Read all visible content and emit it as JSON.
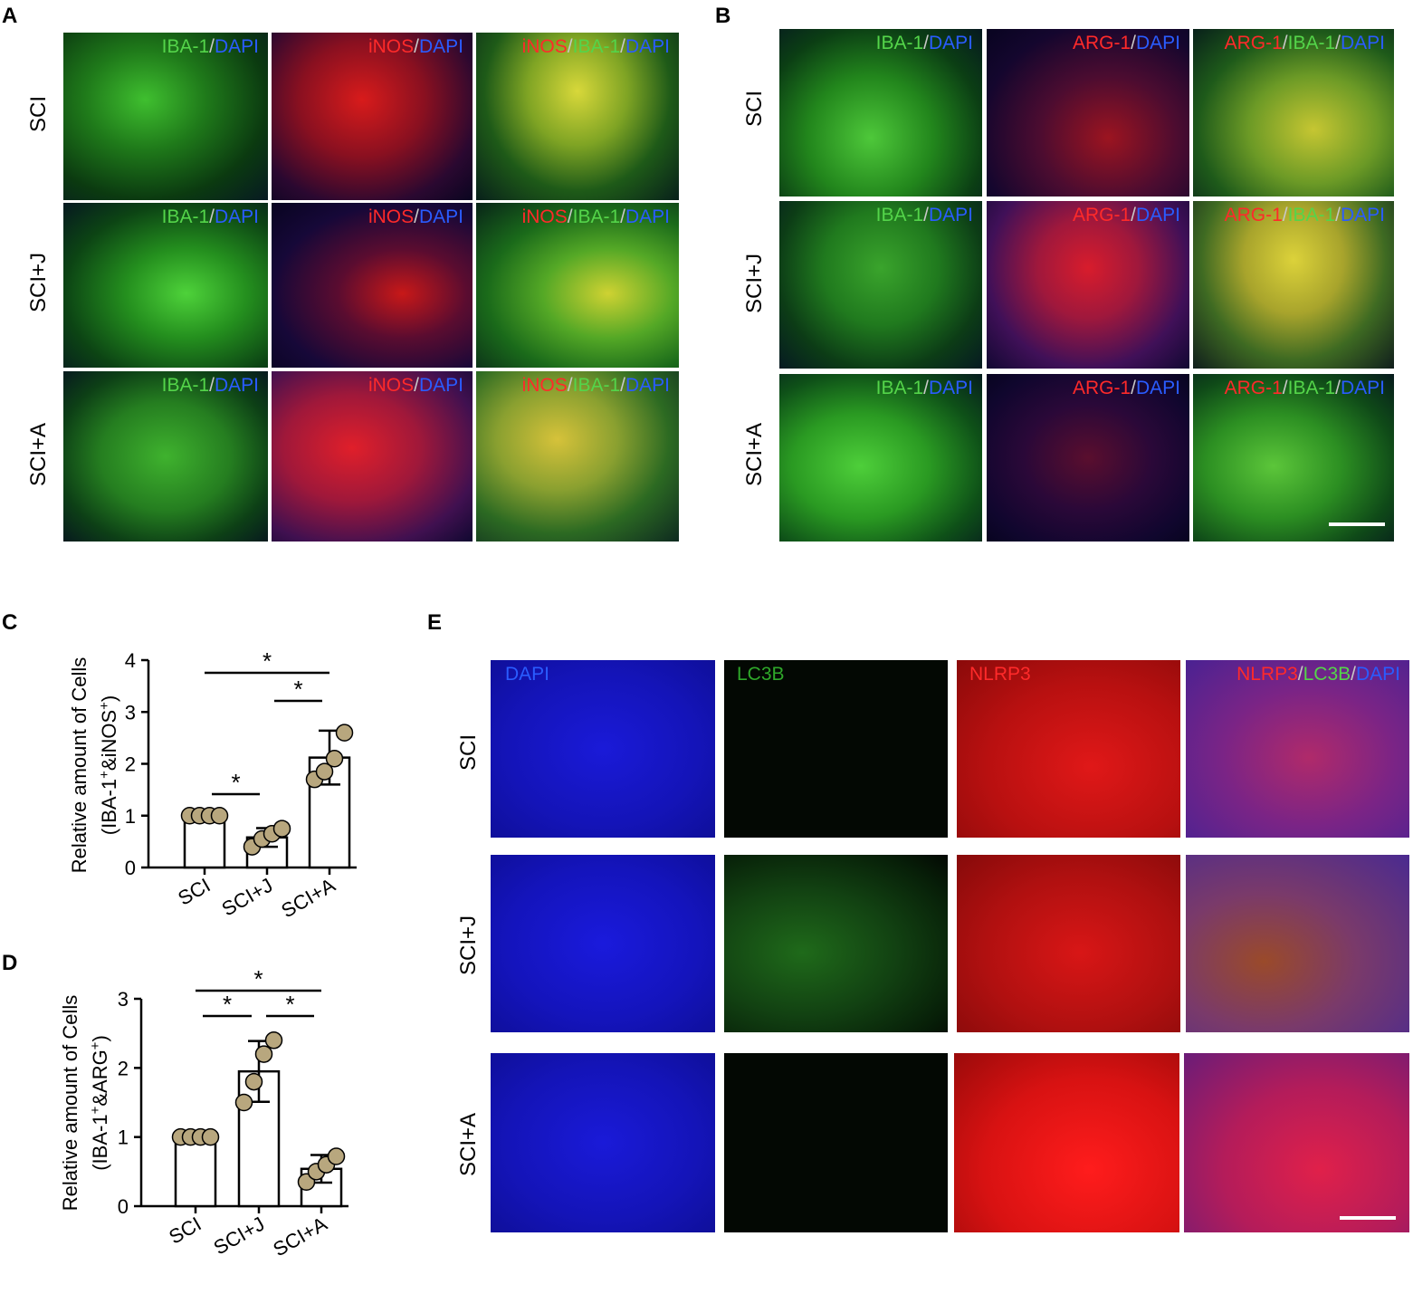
{
  "panels": {
    "A": "A",
    "B": "B",
    "C": "C",
    "D": "D",
    "E": "E"
  },
  "row_labels": [
    "SCI",
    "SCI+J",
    "SCI+A"
  ],
  "panelA": {
    "label1": [
      "IBA-1",
      "/",
      "DAPI"
    ],
    "label2": [
      "iNOS",
      "/",
      "DAPI"
    ],
    "label3": [
      "iNOS",
      "/",
      "IBA-1",
      "/",
      "DAPI"
    ]
  },
  "panelB": {
    "label1": [
      "IBA-1",
      "/",
      "DAPI"
    ],
    "label2": [
      "ARG-1",
      "/",
      "DAPI"
    ],
    "label3": [
      "ARG-1",
      "/",
      "IBA-1",
      "/",
      "DAPI"
    ]
  },
  "panelE": {
    "label1": "DAPI",
    "label2": "LC3B",
    "label3": "NLRP3",
    "label4": [
      "NLRP3",
      "/",
      "LC3B",
      "/",
      "DAPI"
    ]
  },
  "colors": {
    "red": "#ff2a2a",
    "green": "#54d54a",
    "blue": "#2a5cff",
    "point_fill": "#b8a77e"
  },
  "chart_data": [
    {
      "type": "bar",
      "panel": "C",
      "categories": [
        "SCI",
        "SCI+J",
        "SCI+A"
      ],
      "values": [
        1.0,
        0.58,
        2.12
      ],
      "error": [
        0.0,
        0.18,
        0.52
      ],
      "points": [
        [
          1.0,
          1.0,
          1.0,
          1.0
        ],
        [
          0.4,
          0.55,
          0.65,
          0.75
        ],
        [
          1.7,
          1.85,
          2.1,
          2.6
        ]
      ],
      "ylabel_line1": "Relative amount of  Cells",
      "ylabel_line2": "(IBA-1+&iNOS+)",
      "ylim": [
        0,
        4
      ],
      "yticks": [
        "0",
        "1",
        "2",
        "3",
        "4"
      ],
      "significance": [
        {
          "from": 0,
          "to": 1,
          "label": "*"
        },
        {
          "from": 1,
          "to": 2,
          "label": "*"
        },
        {
          "from": 0,
          "to": 2,
          "label": "*"
        }
      ]
    },
    {
      "type": "bar",
      "panel": "D",
      "categories": [
        "SCI",
        "SCI+J",
        "SCI+A"
      ],
      "values": [
        1.0,
        1.95,
        0.54
      ],
      "error": [
        0.0,
        0.44,
        0.2
      ],
      "points": [
        [
          1.0,
          1.0,
          1.0,
          1.0
        ],
        [
          1.5,
          1.8,
          2.2,
          2.4
        ],
        [
          0.35,
          0.5,
          0.6,
          0.72
        ]
      ],
      "ylabel_line1": "Relative amount of  Cells",
      "ylabel_line2": "(IBA-1+&ARG+)",
      "ylim": [
        0,
        3
      ],
      "yticks": [
        "0",
        "1",
        "2",
        "3"
      ],
      "significance": [
        {
          "from": 0,
          "to": 1,
          "label": "*"
        },
        {
          "from": 1,
          "to": 2,
          "label": "*"
        },
        {
          "from": 0,
          "to": 2,
          "label": "*"
        }
      ]
    }
  ]
}
